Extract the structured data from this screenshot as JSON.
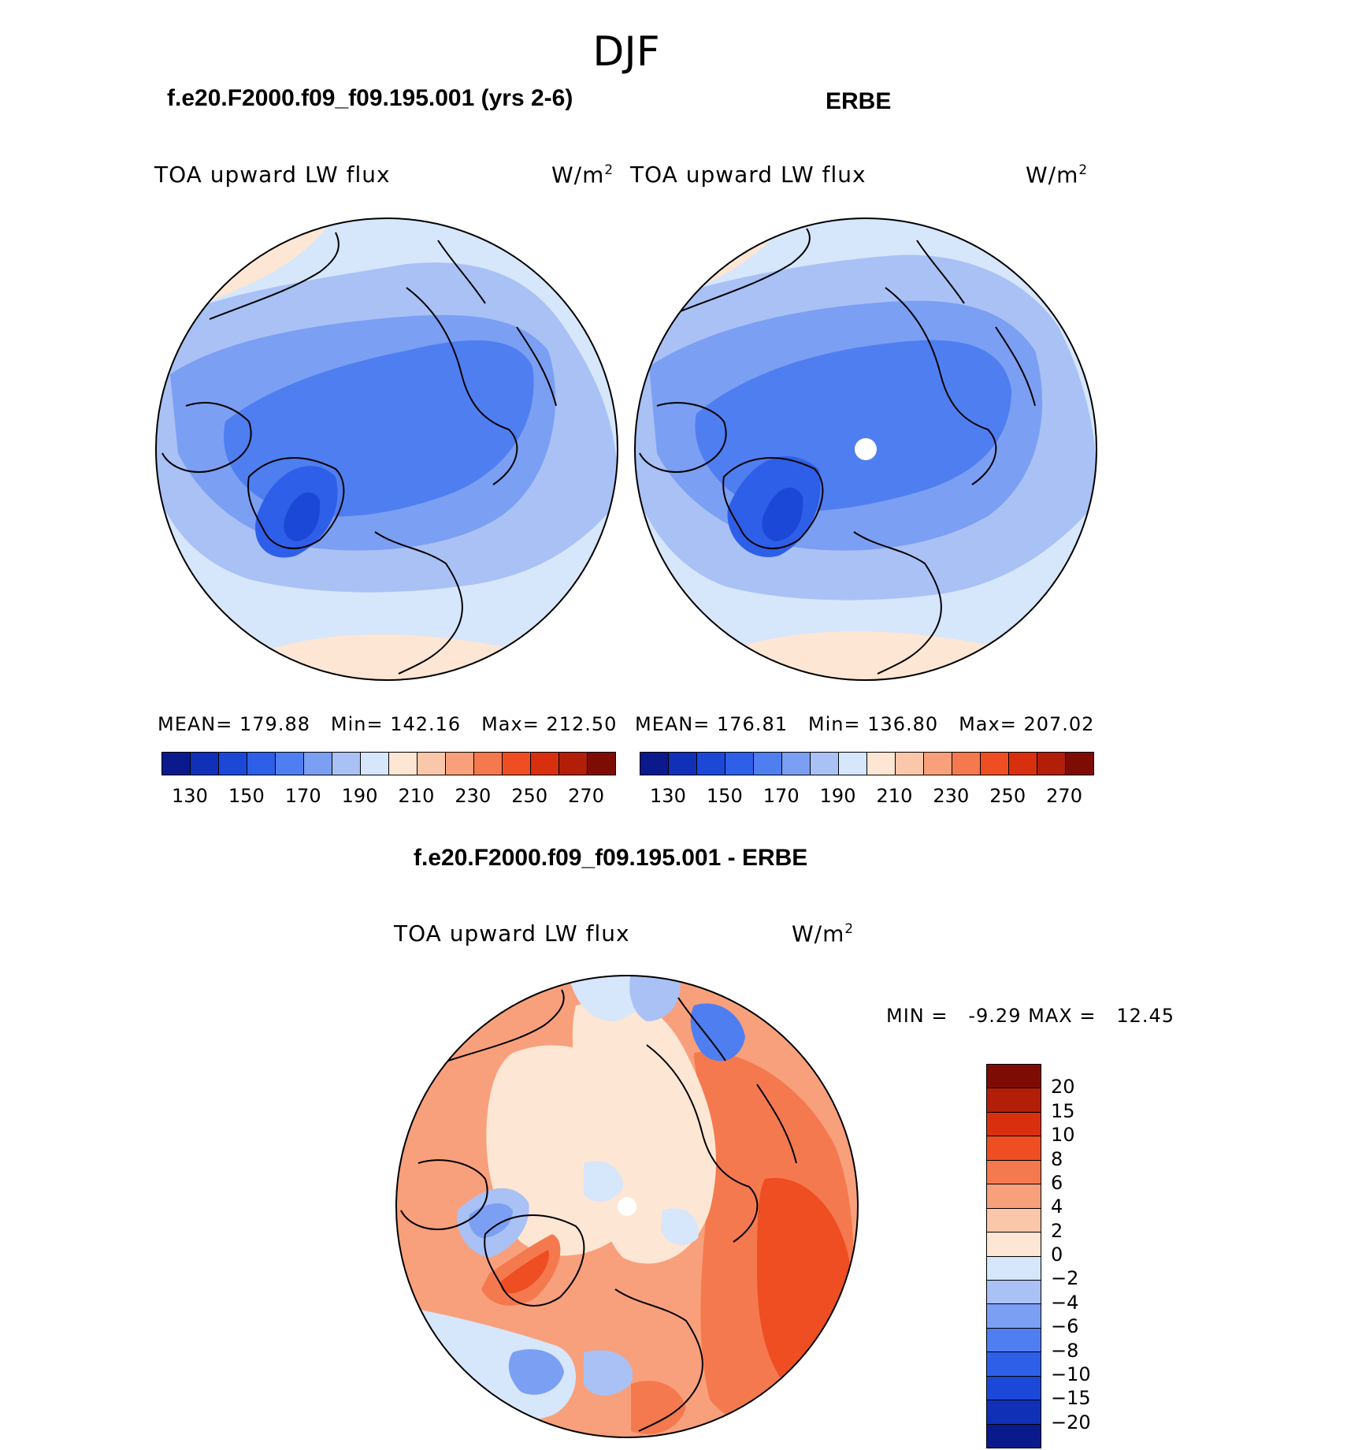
{
  "season": "DJF",
  "panels": {
    "model": {
      "title": "f.e20.F2000.f09_f09.195.001 (yrs 2-6)",
      "variable": "TOA upward LW flux",
      "units": "W/m",
      "units_sup": "2",
      "mean_label": "MEAN=",
      "mean": "179.88",
      "min_label": "Min=",
      "min": "142.16",
      "max_label": "Max=",
      "max": "212.50"
    },
    "obs": {
      "title": "ERBE",
      "variable": "TOA upward LW flux",
      "units": "W/m",
      "units_sup": "2",
      "mean_label": "MEAN=",
      "mean": "176.81",
      "min_label": "Min=",
      "min": "136.80",
      "max_label": "Max=",
      "max": "207.02"
    },
    "diff": {
      "title": "f.e20.F2000.f09_f09.195.001 - ERBE",
      "variable": "TOA upward LW flux",
      "units": "W/m",
      "units_sup": "2",
      "min_label": "MIN =",
      "min": "-9.29",
      "max_label": "MAX =",
      "max": "12.45"
    }
  },
  "colorbar_top": {
    "colors": [
      "#0a1a8c",
      "#1030b8",
      "#1c48d8",
      "#2e5fe8",
      "#4f7ef0",
      "#7b9ff2",
      "#a9c1f5",
      "#d6e6fb",
      "#fde6d4",
      "#fbc7aa",
      "#f8a07b",
      "#f5794e",
      "#ee4e22",
      "#d8300f",
      "#b31e08",
      "#7e0c05"
    ],
    "tick_labels": [
      "130",
      "150",
      "170",
      "190",
      "210",
      "230",
      "250",
      "270"
    ]
  },
  "colorbar_diff": {
    "colors": [
      "#7e0c05",
      "#b31e08",
      "#d8300f",
      "#ee4e22",
      "#f5794e",
      "#f8a07b",
      "#fbc7aa",
      "#fde6d4",
      "#d6e6fb",
      "#a9c1f5",
      "#7b9ff2",
      "#4f7ef0",
      "#2e5fe8",
      "#1c48d8",
      "#1030b8",
      "#0a1a8c"
    ],
    "tick_labels": [
      "20",
      "15",
      "10",
      "8",
      "6",
      "4",
      "2",
      "0",
      "−2",
      "−4",
      "−6",
      "−8",
      "−10",
      "−15",
      "−20"
    ]
  }
}
